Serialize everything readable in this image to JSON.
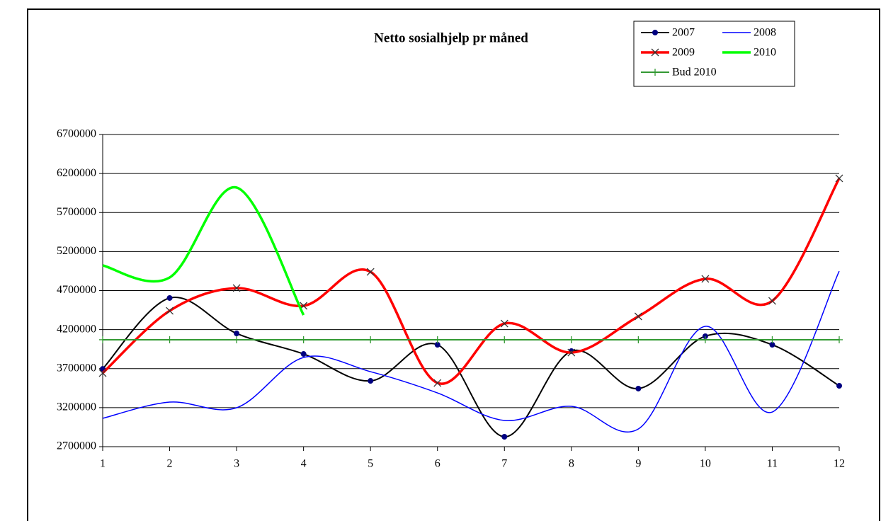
{
  "chart_data": {
    "type": "line",
    "title": "Netto sosialhjelp pr måned",
    "categories": [
      "1",
      "2",
      "3",
      "4",
      "5",
      "6",
      "7",
      "8",
      "9",
      "10",
      "11",
      "12"
    ],
    "series": [
      {
        "name": "2007",
        "color": "#000000",
        "marker": "circle",
        "smooth": true,
        "values": [
          3697000,
          4605000,
          4151000,
          3888000,
          3543000,
          4006000,
          2827000,
          3924000,
          3444000,
          4115000,
          4006000,
          3480000
        ]
      },
      {
        "name": "2008",
        "color": "#0000ff",
        "marker": null,
        "smooth": true,
        "values": [
          3063000,
          3271000,
          3199000,
          3843000,
          3661000,
          3389000,
          3036000,
          3217000,
          2927000,
          4242000,
          3144000,
          4949000
        ]
      },
      {
        "name": "2009",
        "color": "#ff0000",
        "marker": "x",
        "smooth": true,
        "values": [
          3643000,
          4441000,
          4732000,
          4505000,
          4940000,
          3516000,
          4278000,
          3906000,
          4369000,
          4850000,
          4568000,
          6138000
        ]
      },
      {
        "name": "2010",
        "color": "#00ff00",
        "marker": null,
        "smooth": true,
        "values": [
          5022000,
          4868000,
          6020000,
          4387000,
          null,
          null,
          null,
          null,
          null,
          null,
          null,
          null
        ]
      },
      {
        "name": "Bud 2010",
        "color": "#339933",
        "marker": "plus",
        "smooth": false,
        "values": [
          4070000,
          4070000,
          4070000,
          4070000,
          4070000,
          4070000,
          4070000,
          4070000,
          4070000,
          4070000,
          4070000,
          4070000
        ]
      }
    ],
    "ylim": [
      2700000,
      6700000
    ],
    "yticks": [
      2700000,
      3200000,
      3700000,
      4200000,
      4700000,
      5200000,
      5700000,
      6200000,
      6700000
    ],
    "grid": true,
    "legend": "top-right"
  }
}
